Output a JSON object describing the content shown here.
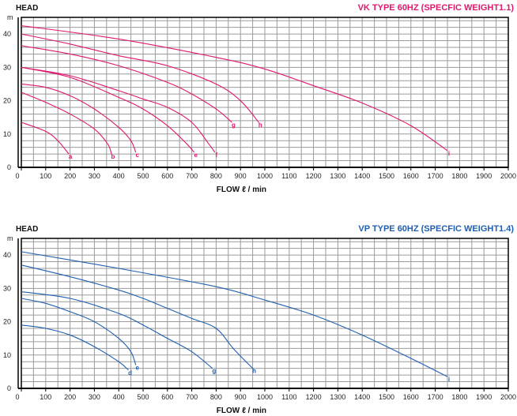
{
  "chart_data": [
    {
      "type": "line",
      "title": "VK TYPE 60HZ (SPECFIC WEIGHT1.1)",
      "ylabel": "HEAD",
      "yunit": "m",
      "xlabel": "FLOW ℓ / min",
      "xlim": [
        0,
        2000
      ],
      "ylim": [
        0,
        45
      ],
      "xticks": [
        0,
        100,
        200,
        300,
        400,
        500,
        600,
        700,
        800,
        900,
        1000,
        1100,
        1200,
        1300,
        1400,
        1500,
        1600,
        1700,
        1800,
        1900,
        2000
      ],
      "yticks": [
        0,
        10,
        20,
        30,
        40
      ],
      "grid": true,
      "color": "#e0176e",
      "series": [
        {
          "name": "a",
          "points": [
            [
              0,
              13.5
            ],
            [
              100,
              10.8
            ],
            [
              150,
              8
            ],
            [
              195,
              4
            ]
          ]
        },
        {
          "name": "b",
          "points": [
            [
              0,
              22.5
            ],
            [
              100,
              19.5
            ],
            [
              200,
              16
            ],
            [
              300,
              11.5
            ],
            [
              355,
              7
            ],
            [
              370,
              4
            ]
          ]
        },
        {
          "name": "c",
          "points": [
            [
              0,
              25
            ],
            [
              100,
              24
            ],
            [
              200,
              21.5
            ],
            [
              300,
              17.5
            ],
            [
              400,
              12
            ],
            [
              450,
              8
            ],
            [
              470,
              4.5
            ]
          ]
        },
        {
          "name": "e",
          "points": [
            [
              0,
              30
            ],
            [
              200,
              27
            ],
            [
              400,
              21
            ],
            [
              500,
              17.5
            ],
            [
              600,
              12.5
            ],
            [
              680,
              7
            ],
            [
              710,
              4.5
            ]
          ]
        },
        {
          "name": "f",
          "points": [
            [
              0,
              30
            ],
            [
              200,
              27.5
            ],
            [
              400,
              23
            ],
            [
              500,
              20.5
            ],
            [
              600,
              18
            ],
            [
              700,
              13.5
            ],
            [
              770,
              7
            ],
            [
              795,
              4.5
            ]
          ]
        },
        {
          "name": "g",
          "points": [
            [
              0,
              36.5
            ],
            [
              200,
              34
            ],
            [
              400,
              30.5
            ],
            [
              600,
              25.5
            ],
            [
              700,
              22
            ],
            [
              800,
              17.5
            ],
            [
              865,
              13.5
            ]
          ]
        },
        {
          "name": "h",
          "points": [
            [
              0,
              40
            ],
            [
              200,
              37
            ],
            [
              400,
              33.5
            ],
            [
              600,
              30.5
            ],
            [
              800,
              25
            ],
            [
              900,
              20
            ],
            [
              975,
              13.5
            ]
          ]
        },
        {
          "name": "i",
          "points": [
            [
              0,
              42.5
            ],
            [
              400,
              38.5
            ],
            [
              800,
              33
            ],
            [
              1000,
              29.5
            ],
            [
              1200,
              24.5
            ],
            [
              1400,
              19.3
            ],
            [
              1600,
              12.5
            ],
            [
              1750,
              5
            ]
          ]
        }
      ]
    },
    {
      "type": "line",
      "title": "VP TYPE 60HZ (SPECFIC WEIGHT1.4)",
      "ylabel": "HEAD",
      "yunit": "m",
      "xlabel": "FLOW ℓ / min",
      "xlim": [
        0,
        2000
      ],
      "ylim": [
        0,
        45
      ],
      "xticks": [
        0,
        100,
        200,
        300,
        400,
        500,
        600,
        700,
        800,
        900,
        1000,
        1100,
        1200,
        1300,
        1400,
        1500,
        1600,
        1700,
        1800,
        1900,
        2000
      ],
      "yticks": [
        0,
        10,
        20,
        30,
        40
      ],
      "grid": true,
      "color": "#1f5fb0",
      "series": [
        {
          "name": "d",
          "points": [
            [
              0,
              19
            ],
            [
              100,
              18
            ],
            [
              200,
              16
            ],
            [
              300,
              12.5
            ],
            [
              400,
              8
            ],
            [
              440,
              5.5
            ]
          ]
        },
        {
          "name": "e",
          "points": [
            [
              0,
              27
            ],
            [
              100,
              25.5
            ],
            [
              200,
              23
            ],
            [
              300,
              20
            ],
            [
              400,
              15
            ],
            [
              450,
              11
            ],
            [
              470,
              7
            ]
          ]
        },
        {
          "name": "g",
          "points": [
            [
              0,
              29
            ],
            [
              200,
              27
            ],
            [
              400,
              22.5
            ],
            [
              500,
              19
            ],
            [
              600,
              15
            ],
            [
              700,
              11
            ],
            [
              785,
              6
            ]
          ]
        },
        {
          "name": "h",
          "points": [
            [
              0,
              37
            ],
            [
              200,
              33.5
            ],
            [
              400,
              29.5
            ],
            [
              500,
              27
            ],
            [
              600,
              24
            ],
            [
              700,
              21
            ],
            [
              800,
              18
            ],
            [
              870,
              12
            ],
            [
              950,
              6
            ]
          ]
        },
        {
          "name": "i",
          "points": [
            [
              0,
              41
            ],
            [
              400,
              36
            ],
            [
              800,
              30.5
            ],
            [
              1000,
              26.5
            ],
            [
              1200,
              22
            ],
            [
              1400,
              16
            ],
            [
              1600,
              9
            ],
            [
              1750,
              3.5
            ]
          ]
        }
      ]
    }
  ]
}
